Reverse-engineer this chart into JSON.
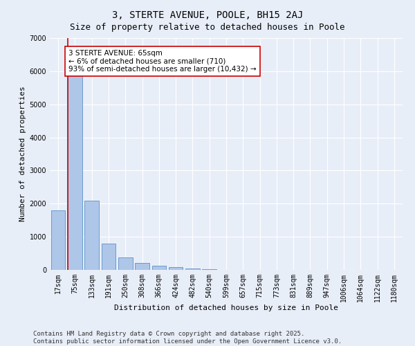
{
  "title": "3, STERTE AVENUE, POOLE, BH15 2AJ",
  "subtitle": "Size of property relative to detached houses in Poole",
  "xlabel": "Distribution of detached houses by size in Poole",
  "ylabel": "Number of detached properties",
  "categories": [
    "17sqm",
    "75sqm",
    "133sqm",
    "191sqm",
    "250sqm",
    "308sqm",
    "366sqm",
    "424sqm",
    "482sqm",
    "540sqm",
    "599sqm",
    "657sqm",
    "715sqm",
    "773sqm",
    "831sqm",
    "889sqm",
    "947sqm",
    "1006sqm",
    "1064sqm",
    "1122sqm",
    "1180sqm"
  ],
  "values": [
    1800,
    5900,
    2100,
    800,
    370,
    200,
    120,
    80,
    45,
    20,
    10,
    8,
    5,
    3,
    2,
    1,
    1,
    1,
    0,
    0,
    0
  ],
  "bar_color": "#aec6e8",
  "bar_edge_color": "#5b8fc9",
  "property_line_color": "#cc0000",
  "annotation_text": "3 STERTE AVENUE: 65sqm\n← 6% of detached houses are smaller (710)\n93% of semi-detached houses are larger (10,432) →",
  "annotation_box_color": "#ffffff",
  "annotation_box_edge_color": "#cc0000",
  "ylim": [
    0,
    7000
  ],
  "yticks": [
    0,
    1000,
    2000,
    3000,
    4000,
    5000,
    6000,
    7000
  ],
  "background_color": "#e8eef8",
  "plot_bg_color": "#e8eef8",
  "footer_line1": "Contains HM Land Registry data © Crown copyright and database right 2025.",
  "footer_line2": "Contains public sector information licensed under the Open Government Licence v3.0.",
  "title_fontsize": 10,
  "subtitle_fontsize": 9,
  "axis_label_fontsize": 8,
  "tick_fontsize": 7,
  "annotation_fontsize": 7.5,
  "footer_fontsize": 6.5
}
